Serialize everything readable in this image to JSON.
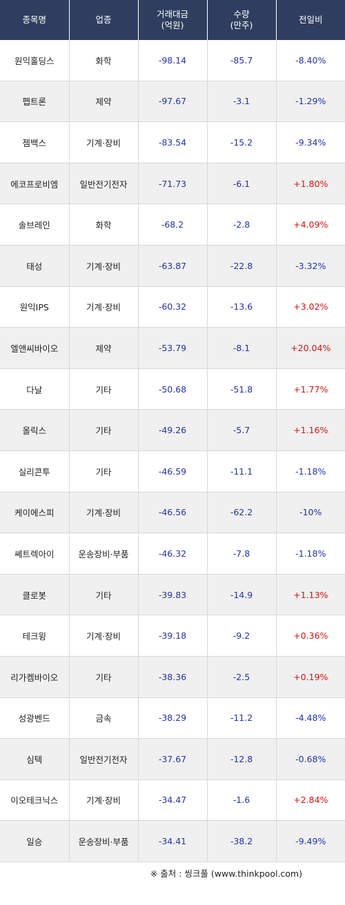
{
  "headers": {
    "name": "종목명",
    "sector": "업종",
    "amount_line1": "거래대금",
    "amount_line2": "(억원)",
    "volume_line1": "수량",
    "volume_line2": "(만주)",
    "change": "전일비"
  },
  "rows": [
    {
      "name": "원익홀딩스",
      "sector": "화학",
      "amount": "-98.14",
      "volume": "-85.7",
      "change": "-8.40%",
      "dir": "neg"
    },
    {
      "name": "펩트론",
      "sector": "제약",
      "amount": "-97.67",
      "volume": "-3.1",
      "change": "-1.29%",
      "dir": "neg"
    },
    {
      "name": "젬백스",
      "sector": "기계·장비",
      "amount": "-83.54",
      "volume": "-15.2",
      "change": "-9.34%",
      "dir": "neg"
    },
    {
      "name": "에코프로비엠",
      "sector": "일반전기전자",
      "amount": "-71.73",
      "volume": "-6.1",
      "change": "+1.80%",
      "dir": "pos"
    },
    {
      "name": "솔브레인",
      "sector": "화학",
      "amount": "-68.2",
      "volume": "-2.8",
      "change": "+4.09%",
      "dir": "pos"
    },
    {
      "name": "태성",
      "sector": "기계·장비",
      "amount": "-63.87",
      "volume": "-22.8",
      "change": "-3.32%",
      "dir": "neg"
    },
    {
      "name": "원익IPS",
      "sector": "기계·장비",
      "amount": "-60.32",
      "volume": "-13.6",
      "change": "+3.02%",
      "dir": "pos"
    },
    {
      "name": "엘앤씨바이오",
      "sector": "제약",
      "amount": "-53.79",
      "volume": "-8.1",
      "change": "+20.04%",
      "dir": "pos"
    },
    {
      "name": "다날",
      "sector": "기타",
      "amount": "-50.68",
      "volume": "-51.8",
      "change": "+1.77%",
      "dir": "pos"
    },
    {
      "name": "올릭스",
      "sector": "기타",
      "amount": "-49.26",
      "volume": "-5.7",
      "change": "+1.16%",
      "dir": "pos"
    },
    {
      "name": "실리콘투",
      "sector": "기타",
      "amount": "-46.59",
      "volume": "-11.1",
      "change": "-1.18%",
      "dir": "neg"
    },
    {
      "name": "케이에스피",
      "sector": "기계·장비",
      "amount": "-46.56",
      "volume": "-62.2",
      "change": "-10%",
      "dir": "neg"
    },
    {
      "name": "쎄트렉아이",
      "sector": "운송장비·부품",
      "amount": "-46.32",
      "volume": "-7.8",
      "change": "-1.18%",
      "dir": "neg"
    },
    {
      "name": "클로봇",
      "sector": "기타",
      "amount": "-39.83",
      "volume": "-14.9",
      "change": "+1.13%",
      "dir": "pos"
    },
    {
      "name": "테크윙",
      "sector": "기계·장비",
      "amount": "-39.18",
      "volume": "-9.2",
      "change": "+0.36%",
      "dir": "pos"
    },
    {
      "name": "리가켐바이오",
      "sector": "기타",
      "amount": "-38.36",
      "volume": "-2.5",
      "change": "+0.19%",
      "dir": "pos"
    },
    {
      "name": "성광벤드",
      "sector": "금속",
      "amount": "-38.29",
      "volume": "-11.2",
      "change": "-4.48%",
      "dir": "neg"
    },
    {
      "name": "심텍",
      "sector": "일반전기전자",
      "amount": "-37.67",
      "volume": "-12.8",
      "change": "-0.68%",
      "dir": "neg"
    },
    {
      "name": "이오테크닉스",
      "sector": "기계·장비",
      "amount": "-34.47",
      "volume": "-1.6",
      "change": "+2.84%",
      "dir": "pos"
    },
    {
      "name": "일승",
      "sector": "운송장비·부품",
      "amount": "-34.41",
      "volume": "-38.2",
      "change": "-9.49%",
      "dir": "neg"
    }
  ],
  "footer": "※ 출처 : 씽크풀 (www.thinkpool.com)",
  "colors": {
    "header_bg": "#2f3e5e",
    "positive": "#dd1111",
    "negative": "#2233aa",
    "stripe": "#f0f0f0"
  }
}
